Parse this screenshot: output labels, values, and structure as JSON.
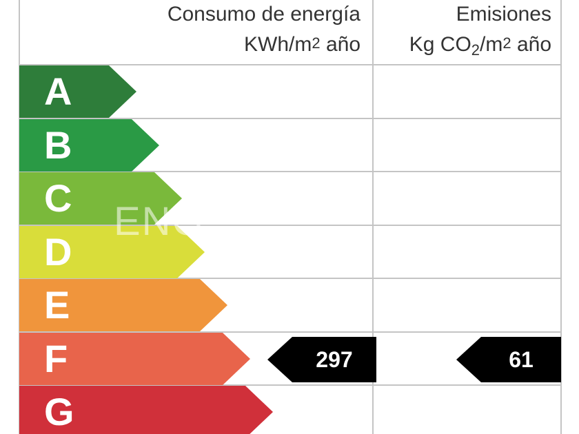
{
  "header": {
    "consumption_title": "Consumo de energía",
    "consumption_unit_pre": "KWh/m",
    "consumption_unit_sup": "2",
    "consumption_unit_post": " año",
    "emissions_title": "Emisiones",
    "emissions_unit_pre": "Kg CO",
    "emissions_unit_sub": "2",
    "emissions_unit_mid": "/m",
    "emissions_unit_sup": "2",
    "emissions_unit_post": " año"
  },
  "bands": [
    {
      "letter": "A",
      "color": "#2e7d3a"
    },
    {
      "letter": "B",
      "color": "#2a9a45"
    },
    {
      "letter": "C",
      "color": "#7ab93b"
    },
    {
      "letter": "D",
      "color": "#d9dd3a"
    },
    {
      "letter": "E",
      "color": "#f0953c"
    },
    {
      "letter": "F",
      "color": "#e8644b"
    },
    {
      "letter": "G",
      "color": "#d0303a"
    }
  ],
  "rating": {
    "consumption_value": "297",
    "consumption_band": "F",
    "emissions_value": "61",
    "emissions_band": "F"
  },
  "watermark": "ENG"
}
